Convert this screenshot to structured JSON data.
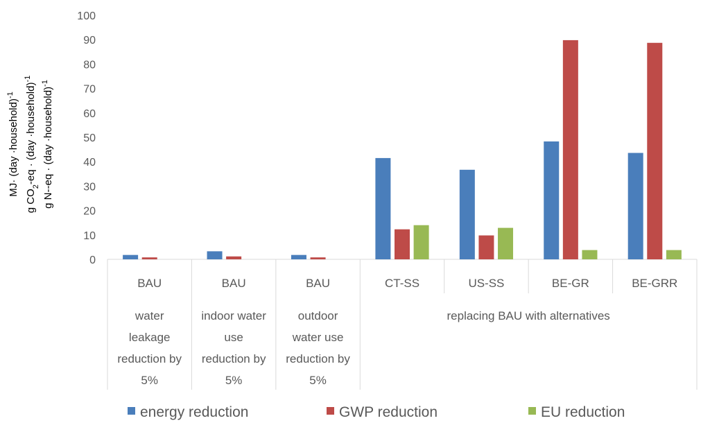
{
  "chart_data": {
    "type": "bar",
    "title": "",
    "xlabel": "",
    "ylabel_lines": [
      [
        "MJ· (day ·household)",
        "-1"
      ],
      [
        "g CO",
        "2",
        "-eq · (day ·household)",
        "-1"
      ],
      [
        "g N--eq · (day ·household)",
        "-1"
      ]
    ],
    "ylim": [
      0,
      100
    ],
    "yticks": [
      "0",
      "10",
      "20",
      "30",
      "40",
      "50",
      "60",
      "70",
      "80",
      "90",
      "100"
    ],
    "categories": [
      "BAU",
      "BAU",
      "BAU",
      "CT-SS",
      "US-SS",
      "BE-GR",
      "BE-GRR"
    ],
    "groups": [
      {
        "lines": [
          "water",
          "leakage",
          "reduction by",
          "5%"
        ]
      },
      {
        "lines": [
          "indoor water",
          "use",
          "reduction by",
          "5%"
        ]
      },
      {
        "lines": [
          "outdoor",
          "water use",
          "reduction by",
          "5%"
        ]
      },
      {
        "lines": [
          "replacing BAU with alternatives"
        ]
      }
    ],
    "series": [
      {
        "name": "energy reduction",
        "color": "#4a7ebb",
        "values": [
          1.8,
          3.3,
          1.8,
          41.5,
          36.7,
          48.3,
          43.6
        ]
      },
      {
        "name": "GWP reduction",
        "color": "#be4b48",
        "values": [
          0.8,
          1.2,
          0.8,
          12.3,
          9.8,
          89.8,
          88.7
        ]
      },
      {
        "name": "EU reduction",
        "color": "#98b954",
        "values": [
          0,
          0,
          0,
          14.0,
          12.9,
          3.8,
          3.8
        ]
      }
    ],
    "grid": false,
    "legend": "bottom"
  }
}
